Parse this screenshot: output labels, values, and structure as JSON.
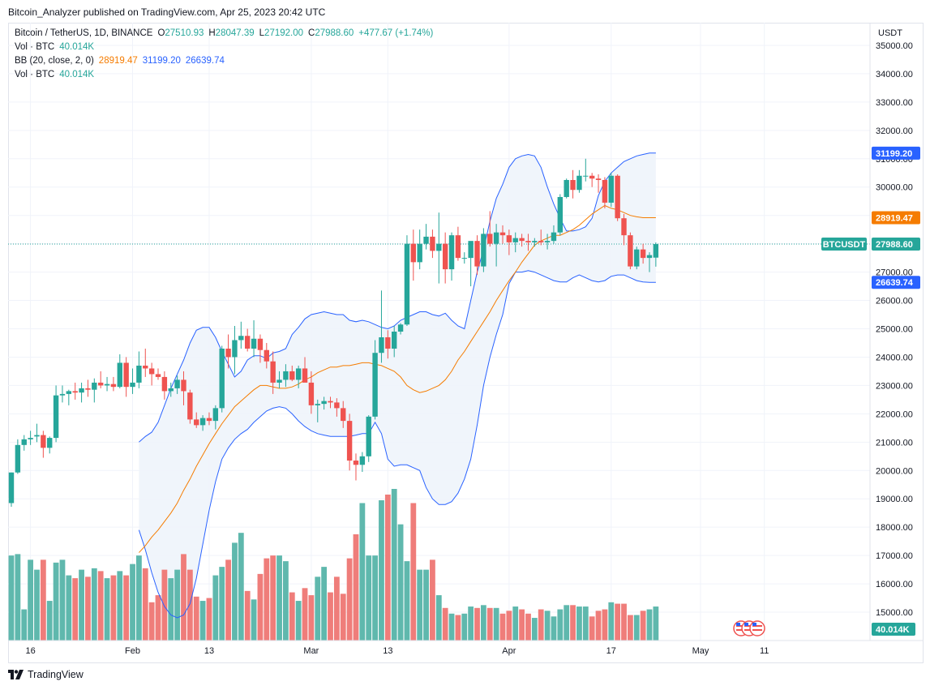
{
  "header": {
    "publisher": "Bitcoin_Analyzer published on TradingView.com, Apr 25, 2023 20:42 UTC"
  },
  "legend": {
    "symbol_title": "Bitcoin / TetherUS, 1D, BINANCE",
    "ohlc": {
      "o_label": "O",
      "o": "27510.93",
      "h_label": "H",
      "h": "28047.39",
      "l_label": "L",
      "l": "27192.00",
      "c_label": "C",
      "c": "27988.60",
      "change": "+477.67 (+1.74%)"
    },
    "vol1_label": "Vol · BTC",
    "vol1_value": "40.014K",
    "bb_label": "BB (20, close, 2, 0)",
    "bb_basis": "28919.47",
    "bb_upper": "31199.20",
    "bb_lower": "26639.74",
    "vol2_label": "Vol · BTC",
    "vol2_value": "40.014K"
  },
  "footer": {
    "brand": "TradingView"
  },
  "colors": {
    "up": "#26a69a",
    "down": "#ef5350",
    "vol_up": "#5fb8ad",
    "vol_down": "#ef7d7a",
    "bb_band": "#2962ff",
    "bb_basis": "#f57c00",
    "band_fill": "#eef4fb"
  },
  "chart_data": {
    "type": "candlestick",
    "currency_label": "USDT",
    "symbol_tag": "BTCUSDT",
    "price_axis_ticks": [
      15000,
      16000,
      17000,
      18000,
      19000,
      20000,
      21000,
      22000,
      23000,
      24000,
      25000,
      26000,
      27000,
      28000,
      29000,
      30000,
      31000,
      32000,
      33000,
      34000,
      35000
    ],
    "ylim": [
      14000,
      35800
    ],
    "x_tick_labels": [
      {
        "label": "16",
        "bar": 3
      },
      {
        "label": "Feb",
        "bar": 19
      },
      {
        "label": "13",
        "bar": 31
      },
      {
        "label": "Mar",
        "bar": 47
      },
      {
        "label": "13",
        "bar": 59
      },
      {
        "label": "Apr",
        "bar": 78
      },
      {
        "label": "17",
        "bar": 94
      },
      {
        "label": "May",
        "bar": 108
      },
      {
        "label": "11",
        "bar": 118
      }
    ],
    "price_labels": [
      {
        "label": "31199.20",
        "value": 31199.2,
        "color": "#2962ff"
      },
      {
        "label": "28919.47",
        "value": 28919.47,
        "color": "#f57c00"
      },
      {
        "label": "27988.60",
        "value": 27988.6,
        "color": "#26a69a"
      },
      {
        "label": "26639.74",
        "value": 26639.74,
        "color": "#2962ff"
      }
    ],
    "volume_label": "40.014K",
    "candles": [
      [
        18850,
        19930,
        18720,
        19930
      ],
      [
        19930,
        21100,
        19880,
        20900
      ],
      [
        20900,
        21250,
        20700,
        21100
      ],
      [
        21100,
        21400,
        20900,
        21150
      ],
      [
        21200,
        21650,
        21000,
        21250
      ],
      [
        21250,
        21400,
        20450,
        20800
      ],
      [
        20800,
        21200,
        20600,
        21150
      ],
      [
        21150,
        23000,
        21000,
        22650
      ],
      [
        22650,
        23000,
        22400,
        22700
      ],
      [
        22700,
        22850,
        22300,
        22800
      ],
      [
        22800,
        23100,
        22500,
        22750
      ],
      [
        22750,
        23100,
        22400,
        22900
      ],
      [
        22900,
        23200,
        22600,
        22850
      ],
      [
        22850,
        23250,
        22400,
        23100
      ],
      [
        23100,
        23500,
        22900,
        23000
      ],
      [
        23000,
        23300,
        22800,
        23050
      ],
      [
        23050,
        23300,
        22800,
        22950
      ],
      [
        22950,
        24100,
        22900,
        23800
      ],
      [
        23800,
        24000,
        22600,
        22950
      ],
      [
        22950,
        23600,
        22700,
        23100
      ],
      [
        23100,
        24200,
        22900,
        23700
      ],
      [
        23700,
        24300,
        23300,
        23600
      ],
      [
        23600,
        23800,
        23000,
        23400
      ],
      [
        23400,
        23600,
        23200,
        23300
      ],
      [
        23300,
        23500,
        22500,
        22800
      ],
      [
        22800,
        23100,
        22600,
        22900
      ],
      [
        22900,
        23350,
        22700,
        23200
      ],
      [
        23200,
        23500,
        22300,
        22800
      ],
      [
        22750,
        22850,
        21650,
        21800
      ],
      [
        21800,
        22050,
        21500,
        21600
      ],
      [
        21600,
        21950,
        21400,
        21850
      ],
      [
        21850,
        22050,
        21600,
        21750
      ],
      [
        21750,
        22300,
        21450,
        22200
      ],
      [
        22200,
        24400,
        22050,
        24300
      ],
      [
        24300,
        24800,
        23600,
        24000
      ],
      [
        24000,
        25100,
        23400,
        24600
      ],
      [
        24600,
        25250,
        24300,
        24750
      ],
      [
        24750,
        25000,
        24200,
        24300
      ],
      [
        24300,
        25300,
        24000,
        24650
      ],
      [
        24650,
        24800,
        23800,
        24250
      ],
      [
        24250,
        24500,
        23600,
        23850
      ],
      [
        23850,
        24200,
        22700,
        23100
      ],
      [
        23100,
        23500,
        22900,
        23200
      ],
      [
        23200,
        23750,
        22950,
        23500
      ],
      [
        23500,
        23700,
        23150,
        23200
      ],
      [
        23200,
        23700,
        22900,
        23600
      ],
      [
        23600,
        24000,
        23300,
        23100
      ],
      [
        23100,
        23500,
        22000,
        22300
      ],
      [
        22300,
        22500,
        21700,
        22350
      ],
      [
        22350,
        22600,
        22150,
        22450
      ],
      [
        22450,
        22600,
        22200,
        22400
      ],
      [
        22400,
        22550,
        21900,
        22200
      ],
      [
        22200,
        22450,
        21500,
        21750
      ],
      [
        21750,
        22000,
        20000,
        20350
      ],
      [
        20350,
        20600,
        19650,
        20200
      ],
      [
        20200,
        20650,
        19950,
        20500
      ],
      [
        20500,
        21950,
        20300,
        21900
      ],
      [
        21900,
        24600,
        21800,
        24150
      ],
      [
        24150,
        26350,
        23800,
        24700
      ],
      [
        24700,
        24950,
        23950,
        24300
      ],
      [
        24300,
        25100,
        24000,
        24900
      ],
      [
        24900,
        25200,
        24800,
        25150
      ],
      [
        25150,
        28300,
        25100,
        28000
      ],
      [
        28000,
        28500,
        26700,
        27350
      ],
      [
        27350,
        28500,
        27100,
        28000
      ],
      [
        28000,
        28700,
        27800,
        28250
      ],
      [
        28250,
        28500,
        27500,
        27750
      ],
      [
        27750,
        29100,
        26600,
        28000
      ],
      [
        28000,
        28400,
        26600,
        27100
      ],
      [
        27100,
        28400,
        26700,
        28300
      ],
      [
        28300,
        28600,
        27400,
        27500
      ],
      [
        27500,
        27700,
        27300,
        27500
      ],
      [
        27500,
        28000,
        26500,
        28100
      ],
      [
        28100,
        28300,
        26900,
        27200
      ],
      [
        27200,
        28550,
        27000,
        28350
      ],
      [
        28350,
        29150,
        27900,
        28000
      ],
      [
        28000,
        28700,
        27200,
        28400
      ],
      [
        28400,
        28650,
        28000,
        28300
      ],
      [
        28300,
        28500,
        27600,
        28050
      ],
      [
        28050,
        28400,
        27700,
        28200
      ],
      [
        28200,
        28350,
        27900,
        28100
      ],
      [
        28100,
        28350,
        27750,
        28050
      ],
      [
        28050,
        28200,
        27900,
        28100
      ],
      [
        28100,
        28500,
        27950,
        28050
      ],
      [
        28050,
        28350,
        27800,
        28100
      ],
      [
        28100,
        28650,
        28000,
        28400
      ],
      [
        28400,
        29750,
        28300,
        29650
      ],
      [
        29650,
        30300,
        29600,
        30250
      ],
      [
        30250,
        30600,
        29600,
        29900
      ],
      [
        29900,
        30600,
        29800,
        30400
      ],
      [
        30400,
        31000,
        30200,
        30400
      ],
      [
        30400,
        30500,
        30000,
        30300
      ],
      [
        30300,
        30450,
        29800,
        30250
      ],
      [
        30250,
        30350,
        29250,
        29450
      ],
      [
        29450,
        30500,
        29300,
        30400
      ],
      [
        30400,
        30450,
        28800,
        28900
      ],
      [
        28900,
        29050,
        27950,
        28300
      ],
      [
        28300,
        28400,
        27100,
        27200
      ],
      [
        27200,
        27900,
        27100,
        27800
      ],
      [
        27800,
        28000,
        27300,
        27500
      ],
      [
        27500,
        27700,
        27000,
        27600
      ],
      [
        27510.93,
        28047.39,
        27192,
        27988.6
      ]
    ],
    "volumes": [
      17000,
      17050,
      15100,
      16850,
      16500,
      16850,
      15400,
      16750,
      16850,
      16300,
      16200,
      16500,
      16250,
      16550,
      16450,
      16200,
      16300,
      16450,
      16300,
      16700,
      17000,
      16550,
      15350,
      15600,
      16500,
      16200,
      16500,
      17050,
      16500,
      15550,
      15400,
      15500,
      16300,
      16600,
      16850,
      17450,
      17800,
      15750,
      15450,
      16350,
      16900,
      17000,
      17000,
      16800,
      15700,
      15400,
      15850,
      15600,
      16250,
      16600,
      15700,
      16250,
      15650,
      16900,
      17750,
      18850,
      17000,
      17000,
      18950,
      19150,
      19350,
      18100,
      16800,
      18850,
      16500,
      16500,
      16850,
      15600,
      15150,
      14950,
      14900,
      14950,
      15200,
      15150,
      15250,
      15150,
      15150,
      14950,
      15050,
      15200,
      15100,
      14950,
      14800,
      15100,
      15050,
      14850,
      15100,
      15250,
      15250,
      15200,
      15200,
      14850,
      15050,
      15100,
      15350,
      15300,
      15300,
      14900,
      14900,
      15050,
      15100,
      15200
    ],
    "bb_upper": [
      null,
      null,
      null,
      null,
      null,
      null,
      null,
      null,
      null,
      null,
      null,
      null,
      null,
      null,
      null,
      null,
      null,
      null,
      null,
      null,
      21000,
      21200,
      21350,
      21700,
      22300,
      22900,
      23400,
      23900,
      24500,
      24950,
      25050,
      25050,
      24700,
      24200,
      23750,
      23300,
      23500,
      23900,
      24050,
      24050,
      23950,
      24150,
      24200,
      24300,
      24800,
      25050,
      25350,
      25500,
      25550,
      25600,
      25550,
      25500,
      25500,
      25300,
      25250,
      25300,
      25250,
      25150,
      25050,
      25000,
      25100,
      25300,
      25400,
      25500,
      25600,
      25600,
      25500,
      25450,
      25550,
      25300,
      25100,
      25000,
      26000,
      27000,
      27800,
      28800,
      29600,
      30100,
      30700,
      31000,
      31100,
      31150,
      31100,
      30700,
      30000,
      29400,
      28900,
      28450,
      28450,
      28500,
      28600,
      28900,
      29700,
      30200,
      30500,
      30700,
      30900,
      31000,
      31100,
      31150,
      31200,
      31200
    ],
    "bb_lower": [
      null,
      null,
      null,
      null,
      null,
      null,
      null,
      null,
      null,
      null,
      null,
      null,
      null,
      null,
      null,
      null,
      null,
      null,
      null,
      null,
      17900,
      17200,
      16400,
      15700,
      15200,
      14900,
      14800,
      14900,
      15300,
      16200,
      17400,
      18600,
      19600,
      20400,
      20800,
      21100,
      21300,
      21450,
      21700,
      21900,
      22100,
      22200,
      22250,
      22200,
      22000,
      21750,
      21550,
      21400,
      21300,
      21250,
      21200,
      21200,
      21200,
      21200,
      21250,
      21300,
      21300,
      21700,
      21300,
      20400,
      20150,
      20200,
      20200,
      20100,
      20000,
      19400,
      19000,
      18800,
      18800,
      18900,
      19200,
      19700,
      20400,
      21600,
      23000,
      24000,
      24800,
      25500,
      26600,
      27000,
      27000,
      27050,
      27000,
      26900,
      26800,
      26700,
      26650,
      26650,
      26800,
      26900,
      26800,
      26700,
      26650,
      26700,
      26850,
      26900,
      26900,
      26800,
      26700,
      26650,
      26639.74,
      26639.74
    ],
    "bb_basis": [
      null,
      null,
      null,
      null,
      null,
      null,
      null,
      null,
      null,
      null,
      null,
      null,
      null,
      null,
      null,
      null,
      null,
      null,
      null,
      null,
      17100,
      17350,
      17650,
      17900,
      18200,
      18500,
      18850,
      19300,
      19700,
      20150,
      20550,
      20950,
      21300,
      21650,
      21950,
      22250,
      22450,
      22650,
      22850,
      23000,
      23000,
      22950,
      22900,
      22900,
      22950,
      23050,
      23200,
      23300,
      23450,
      23550,
      23650,
      23650,
      23700,
      23700,
      23750,
      23800,
      23800,
      23750,
      23700,
      23600,
      23500,
      23300,
      23000,
      22850,
      22750,
      22800,
      22900,
      23000,
      23200,
      23500,
      23900,
      24200,
      24550,
      24900,
      25250,
      25600,
      26000,
      26350,
      26700,
      27000,
      27350,
      27650,
      27950,
      28100,
      28200,
      28300,
      28300,
      28400,
      28500,
      28650,
      28850,
      29050,
      29200,
      29350,
      29250,
      29200,
      29100,
      29000,
      28950,
      28920,
      28919.47,
      28919.47
    ]
  }
}
